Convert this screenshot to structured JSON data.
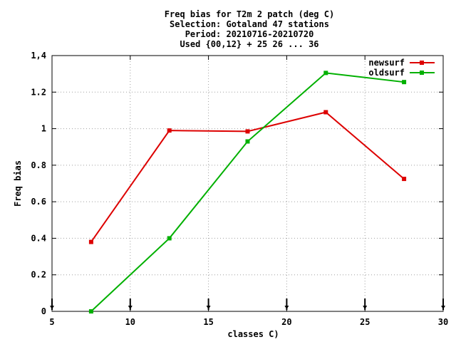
{
  "chart_data": {
    "type": "line",
    "title_lines": [
      "Freq bias  for T2m 2 patch (deg C)",
      "Selection: Gotaland     47 stations",
      "Period: 20210716-20210720",
      "Used {00,12} + 25 26 ... 36"
    ],
    "xlabel": "classes C)",
    "ylabel": "Freq bias",
    "xlim": [
      5,
      30
    ],
    "ylim": [
      0,
      1.4
    ],
    "x_ticks": [
      "5",
      "10",
      "15",
      "20",
      "25",
      "30"
    ],
    "y_ticks": [
      "0",
      "0.2",
      "0.4",
      "0.6",
      "0.8",
      "1",
      "1.2",
      "1,4"
    ],
    "grid": true,
    "legend_position": "top-right",
    "baseline_markers_x": [
      5,
      10,
      15,
      20,
      25,
      30
    ],
    "series": [
      {
        "name": "newsurf",
        "color": "#dd0000",
        "x": [
          7.5,
          12.5,
          17.5,
          22.5,
          27.5
        ],
        "y": [
          0.38,
          0.99,
          0.985,
          1.09,
          0.725
        ]
      },
      {
        "name": "oldsurf",
        "color": "#00b000",
        "x": [
          7.5,
          12.5,
          17.5,
          22.5,
          27.5
        ],
        "y": [
          0.0,
          0.4,
          0.93,
          1.305,
          1.255
        ]
      }
    ]
  }
}
